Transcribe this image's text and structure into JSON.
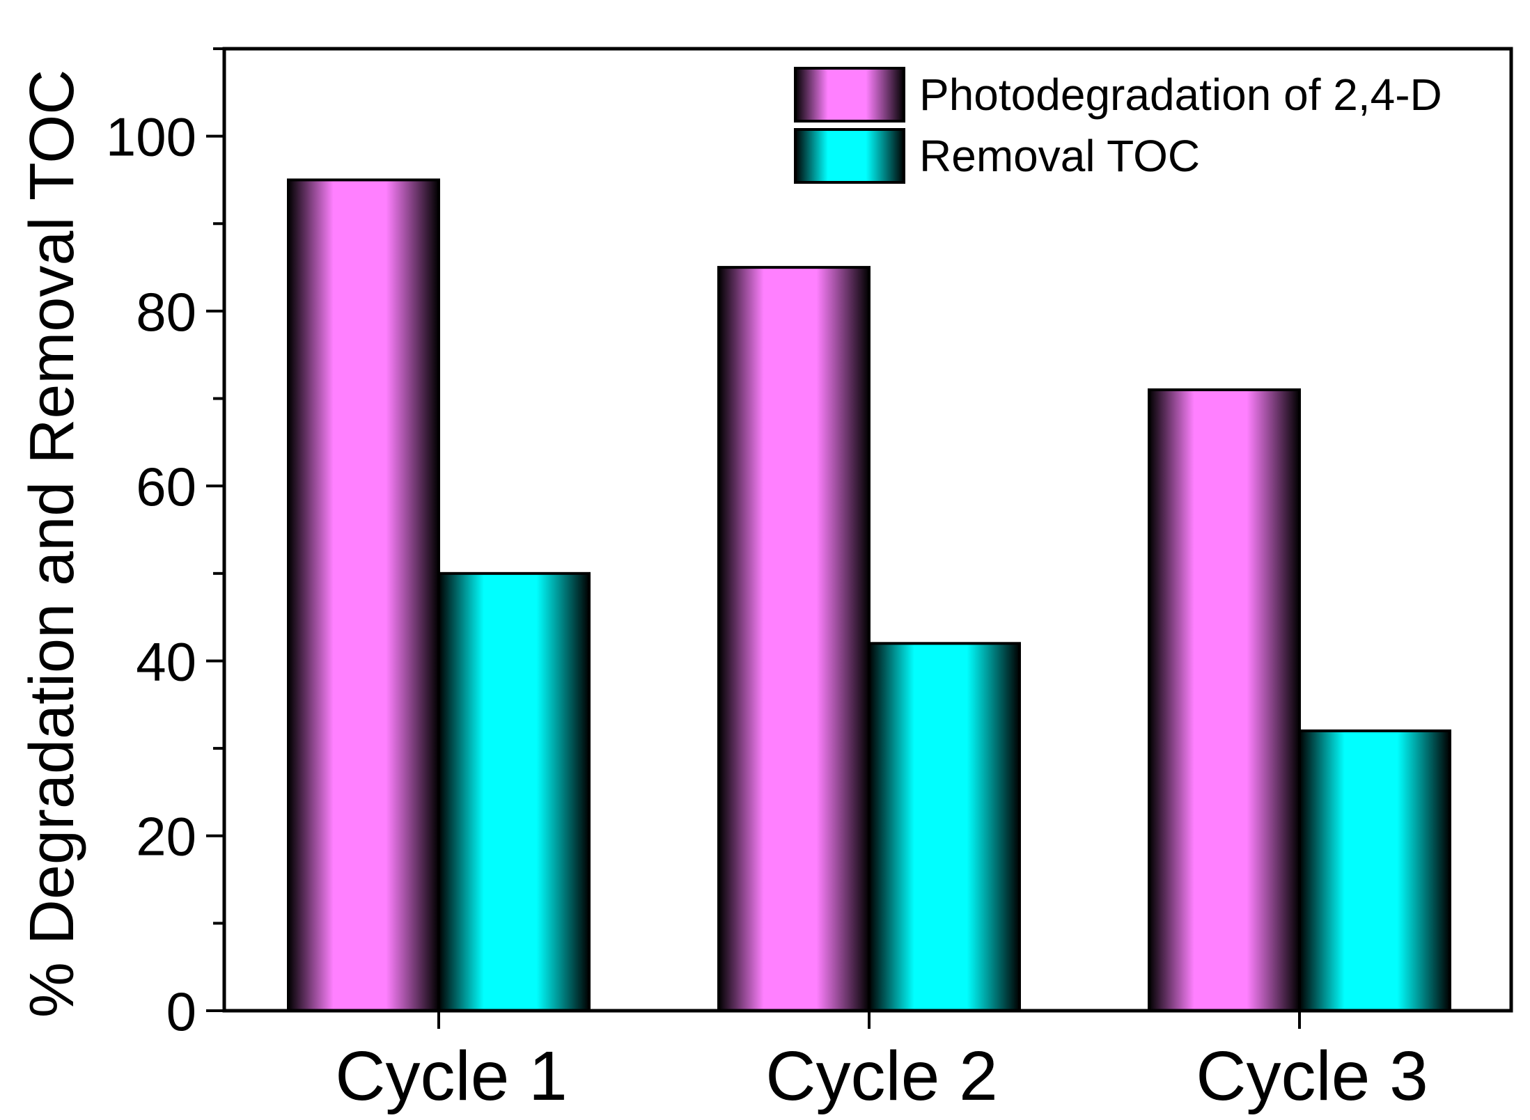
{
  "chart_data": {
    "type": "bar",
    "title": "",
    "xlabel": "",
    "ylabel": "% Degradation and Removal TOC",
    "categories": [
      "Cycle 1",
      "Cycle 2",
      "Cycle 3"
    ],
    "series": [
      {
        "name": "Photodegradation of 2,4-D",
        "values": [
          95,
          85,
          71
        ],
        "color": "#ff80ff"
      },
      {
        "name": "Removal TOC",
        "values": [
          50,
          42,
          32
        ],
        "color": "#00ffff"
      }
    ],
    "ylim": [
      0,
      110
    ],
    "yticks": [
      0,
      20,
      40,
      60,
      80,
      100
    ],
    "yminor_step": 10,
    "grid": false,
    "legend_position": "top-right",
    "bar_shading": "gradient-dark-edges"
  }
}
